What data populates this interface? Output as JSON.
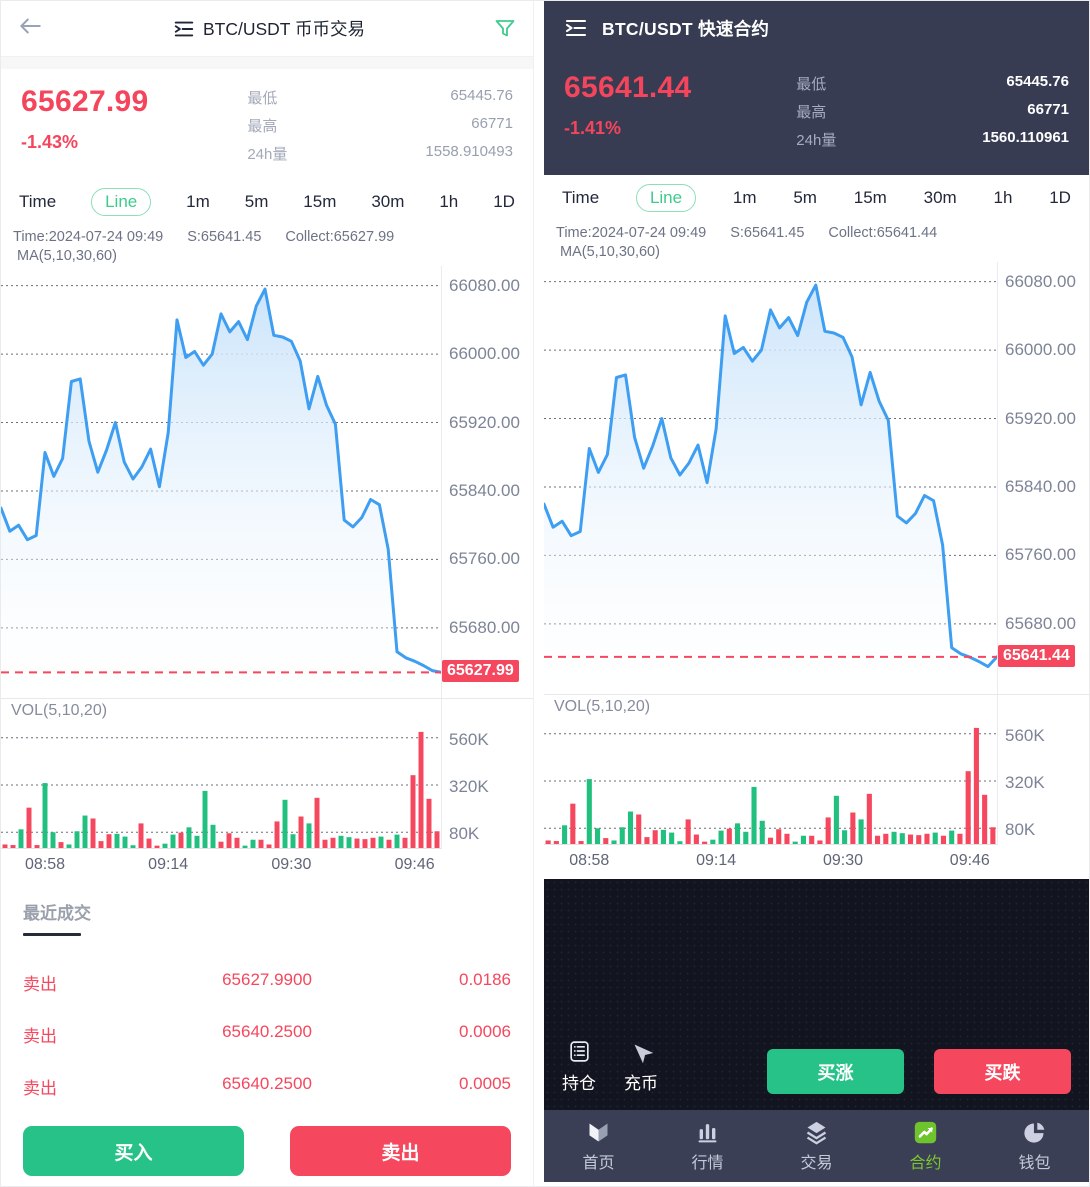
{
  "colors": {
    "red": "#f5475d",
    "green": "#26c287",
    "line_blue": "#3d9ef2",
    "navy_header": "#373c52",
    "black_zone": "#12151f",
    "nav_active_green": "#7ec62f"
  },
  "tabs": [
    "Time",
    "Line",
    "1m",
    "5m",
    "15m",
    "30m",
    "1h",
    "1D"
  ],
  "active_tab": "Line",
  "left": {
    "header": {
      "title": "BTC/USDT 币币交易"
    },
    "price": "65627.99",
    "change": "-1.43%",
    "stats": [
      {
        "label": "最低",
        "value": "65445.76"
      },
      {
        "label": "最高",
        "value": "66771"
      },
      {
        "label": "24h量",
        "value": "1558.910493"
      }
    ],
    "chart_info": {
      "time": "Time:2024-07-24 09:49",
      "s": "S:65641.45",
      "collect": "Collect:65627.99",
      "ma": "MA(5,10,30,60)"
    },
    "current_price": "65627.99",
    "recent_trades": {
      "title": "最近成交",
      "rows": [
        [
          "卖出",
          "65627.9900",
          "0.0186"
        ],
        [
          "卖出",
          "65640.2500",
          "0.0006"
        ],
        [
          "卖出",
          "65640.2500",
          "0.0005"
        ]
      ]
    },
    "buy_label": "买入",
    "sell_label": "卖出"
  },
  "right": {
    "header": {
      "title": "BTC/USDT 快速合约"
    },
    "price": "65641.44",
    "change": "-1.41%",
    "stats": [
      {
        "label": "最低",
        "value": "65445.76"
      },
      {
        "label": "最高",
        "value": "66771"
      },
      {
        "label": "24h量",
        "value": "1560.110961"
      }
    ],
    "chart_info": {
      "time": "Time:2024-07-24 09:49",
      "s": "S:65641.45",
      "collect": "Collect:65641.44",
      "ma": "MA(5,10,30,60)"
    },
    "current_price": "65641.44",
    "actions": {
      "positions": "持仓",
      "deposit": "充币",
      "buy_up": "买涨",
      "buy_down": "买跌"
    },
    "nav": [
      {
        "label": "首页",
        "icon": "home-icon",
        "active": false
      },
      {
        "label": "行情",
        "icon": "market-icon",
        "active": false
      },
      {
        "label": "交易",
        "icon": "trade-icon",
        "active": false
      },
      {
        "label": "合约",
        "icon": "contract-icon",
        "active": true
      },
      {
        "label": "钱包",
        "icon": "wallet-icon",
        "active": false
      }
    ]
  },
  "chart_data": {
    "type": "line",
    "title": "BTC/USDT intraday price with volume",
    "x_labels": [
      "08:58",
      "09:14",
      "09:30",
      "09:46"
    ],
    "x_label_pos": [
      10,
      38,
      66,
      94
    ],
    "y_tick_labels": [
      "66080.00",
      "66000.00",
      "65920.00",
      "65840.00",
      "65760.00",
      "65680.00"
    ],
    "y_ticks": [
      66080,
      66000,
      65920,
      65840,
      65760,
      65680
    ],
    "y_range": [
      65598,
      66103
    ],
    "price_series": [
      65820,
      65793,
      65800,
      65783,
      65788,
      65885,
      65857,
      65878,
      65968,
      65971,
      65898,
      65862,
      65888,
      65920,
      65874,
      65854,
      65868,
      65889,
      65845,
      65908,
      66040,
      65996,
      66003,
      65987,
      66000,
      66047,
      66026,
      66038,
      66017,
      66056,
      66076,
      66022,
      66020,
      66015,
      65992,
      65936,
      65974,
      65940,
      65918,
      65806,
      65798,
      65809,
      65830,
      65824,
      65772,
      65652,
      65645,
      65641,
      65636,
      65630,
      65628
    ],
    "left_last_price": 65627.99,
    "right_last_price": 65641.44,
    "vol_label": "VOL(5,10,20)",
    "vol_tick_labels": [
      "560K",
      "320K",
      "80K"
    ],
    "vol_ticks": [
      560,
      320,
      80
    ],
    "vol_max": 620,
    "volume_bars": [
      [
        "r",
        18
      ],
      [
        "r",
        15
      ],
      [
        "g",
        95
      ],
      [
        "r",
        205
      ],
      [
        "r",
        15
      ],
      [
        "g",
        330
      ],
      [
        "g",
        80
      ],
      [
        "r",
        30
      ],
      [
        "g",
        18
      ],
      [
        "g",
        85
      ],
      [
        "g",
        165
      ],
      [
        "r",
        150
      ],
      [
        "r",
        35
      ],
      [
        "r",
        70
      ],
      [
        "g",
        72
      ],
      [
        "g",
        58
      ],
      [
        "g",
        14
      ],
      [
        "r",
        125
      ],
      [
        "r",
        48
      ],
      [
        "r",
        12
      ],
      [
        "g",
        22
      ],
      [
        "g",
        68
      ],
      [
        "r",
        78
      ],
      [
        "g",
        105
      ],
      [
        "g",
        62
      ],
      [
        "g",
        290
      ],
      [
        "g",
        118
      ],
      [
        "r",
        32
      ],
      [
        "r",
        75
      ],
      [
        "r",
        52
      ],
      [
        "g",
        12
      ],
      [
        "g",
        42
      ],
      [
        "r",
        42
      ],
      [
        "r",
        18
      ],
      [
        "r",
        135
      ],
      [
        "g",
        245
      ],
      [
        "g",
        70
      ],
      [
        "r",
        160
      ],
      [
        "g",
        125
      ],
      [
        "r",
        255
      ],
      [
        "r",
        42
      ],
      [
        "r",
        52
      ],
      [
        "g",
        62
      ],
      [
        "g",
        55
      ],
      [
        "r",
        48
      ],
      [
        "r",
        45
      ],
      [
        "r",
        52
      ],
      [
        "g",
        58
      ],
      [
        "r",
        42
      ],
      [
        "g",
        68
      ],
      [
        "r",
        52
      ],
      [
        "r",
        370
      ],
      [
        "r",
        590
      ],
      [
        "r",
        250
      ],
      [
        "r",
        85
      ]
    ]
  }
}
